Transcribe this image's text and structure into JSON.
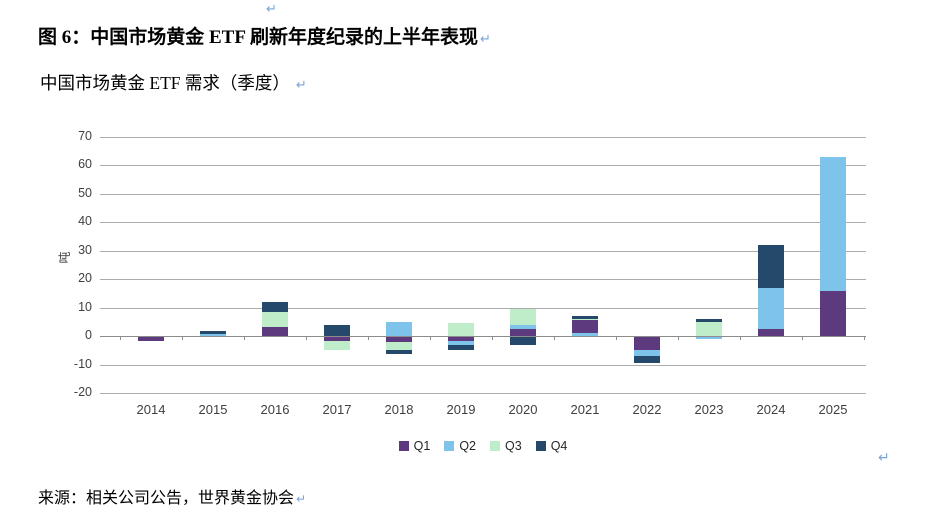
{
  "document": {
    "figure_title": "图 6：中国市场黄金 ETF 刷新年度纪录的上半年表现",
    "chart_subtitle": "中国市场黄金 ETF 需求（季度）",
    "source": "来源：相关公司公告，世界黄金协会",
    "line_break_mark": "↵"
  },
  "chart_data": {
    "type": "bar",
    "stacked": true,
    "title": "中国市场黄金 ETF 需求（季度）",
    "xlabel": "",
    "ylabel": "吨",
    "ylim": [
      -20,
      70
    ],
    "yticks": [
      70,
      60,
      50,
      40,
      30,
      20,
      10,
      0,
      -10,
      -20
    ],
    "grid": true,
    "legend_position": "bottom",
    "categories": [
      "2014",
      "2015",
      "2016",
      "2017",
      "2018",
      "2019",
      "2020",
      "2021",
      "2022",
      "2023",
      "2024",
      "2025"
    ],
    "series": [
      {
        "name": "Q1",
        "color": "#5d3a7d",
        "values": [
          -1.5,
          0,
          3.3,
          -1.5,
          -1.6,
          -1.3,
          2.6,
          4.3,
          -4.5,
          0,
          2.6,
          16
        ]
      },
      {
        "name": "Q2",
        "color": "#7ec3ea",
        "values": [
          0,
          0.8,
          0,
          0,
          5,
          -1.6,
          1.4,
          1.2,
          -2,
          -0.7,
          14.4,
          47
        ]
      },
      {
        "name": "Q3",
        "color": "#bfedca",
        "values": [
          0,
          0,
          5.2,
          -3,
          -3,
          4.5,
          5.6,
          0.5,
          0,
          5,
          0,
          0
        ]
      },
      {
        "name": "Q4",
        "color": "#24496b",
        "values": [
          0,
          1,
          3.5,
          4,
          -1.4,
          -1.6,
          -2.7,
          1,
          -2.5,
          1,
          15,
          0
        ]
      }
    ],
    "draw_order": [
      {
        "year": "2014",
        "pos": [],
        "neg": [
          [
            "Q1",
            1.5
          ]
        ]
      },
      {
        "year": "2015",
        "pos": [
          [
            "Q2",
            0.8
          ],
          [
            "Q4",
            1
          ]
        ],
        "neg": []
      },
      {
        "year": "2016",
        "pos": [
          [
            "Q1",
            3.3
          ],
          [
            "Q3",
            5.2
          ],
          [
            "Q4",
            3.5
          ]
        ],
        "neg": []
      },
      {
        "year": "2017",
        "pos": [
          [
            "Q4",
            4
          ]
        ],
        "neg": [
          [
            "Q1",
            1.5
          ],
          [
            "Q3",
            3
          ]
        ]
      },
      {
        "year": "2018",
        "pos": [
          [
            "Q2",
            5
          ]
        ],
        "neg": [
          [
            "Q1",
            1.6
          ],
          [
            "Q3",
            3
          ],
          [
            "Q4",
            1.4
          ]
        ]
      },
      {
        "year": "2019",
        "pos": [
          [
            "Q3",
            4.5
          ]
        ],
        "neg": [
          [
            "Q1",
            1.3
          ],
          [
            "Q2",
            1.6
          ],
          [
            "Q4",
            1.6
          ]
        ]
      },
      {
        "year": "2020",
        "pos": [
          [
            "Q1",
            2.6
          ],
          [
            "Q2",
            1.4
          ],
          [
            "Q3",
            5.6
          ]
        ],
        "neg": [
          [
            "Q4",
            2.7
          ]
        ]
      },
      {
        "year": "2021",
        "pos": [
          [
            "Q2",
            1.2
          ],
          [
            "Q1",
            4.3
          ],
          [
            "Q3",
            0.5
          ],
          [
            "Q4",
            1
          ]
        ],
        "neg": []
      },
      {
        "year": "2022",
        "pos": [],
        "neg": [
          [
            "Q1",
            4.5
          ],
          [
            "Q2",
            2
          ],
          [
            "Q4",
            2.5
          ]
        ]
      },
      {
        "year": "2023",
        "pos": [
          [
            "Q3",
            5
          ],
          [
            "Q4",
            1
          ]
        ],
        "neg": [
          [
            "Q2",
            0.7
          ]
        ]
      },
      {
        "year": "2024",
        "pos": [
          [
            "Q1",
            2.6
          ],
          [
            "Q2",
            14.4
          ],
          [
            "Q4",
            15
          ]
        ],
        "neg": []
      },
      {
        "year": "2025",
        "pos": [
          [
            "Q1",
            16
          ],
          [
            "Q2",
            47
          ]
        ],
        "neg": []
      }
    ]
  }
}
